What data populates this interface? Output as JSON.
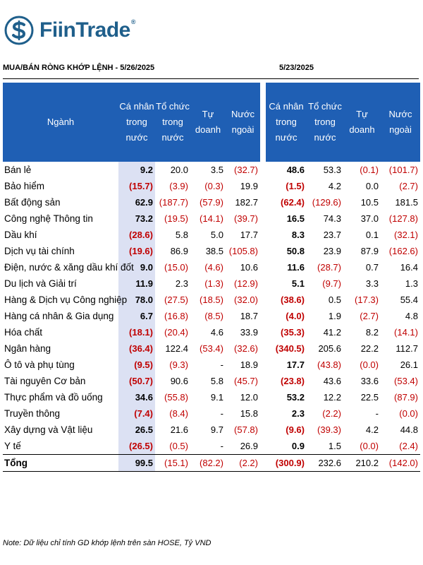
{
  "brand": {
    "name": "FiinTrade",
    "reg": "®",
    "color": "#1f5f8b"
  },
  "header": {
    "left": "MUA/BÁN RÒNG KHỚP LỆNH - 5/26/2025",
    "right": "5/23/2025"
  },
  "columns": {
    "sector": "Ngành",
    "a": [
      "Cá nhân",
      "trong",
      "nước"
    ],
    "b": [
      "Tổ chức",
      "trong",
      "nước"
    ],
    "c": [
      "Tự doanh"
    ],
    "d": [
      "Nước",
      "ngoài"
    ],
    "e": [
      "Cá nhân",
      "trong nước"
    ],
    "f": [
      "Tổ chức",
      "trong",
      "nước"
    ],
    "g": [
      "Tự doanh"
    ],
    "h": [
      "Nước",
      "ngoài"
    ]
  },
  "colors": {
    "header_bg": "#1f5fb4",
    "highlight_bg": "#dce1f3",
    "negative": "#c00000"
  },
  "rows": [
    {
      "name": "Bán lẻ",
      "v": [
        "9.2",
        "20.0",
        "3.5",
        "(32.7)",
        "48.6",
        "53.3",
        "(0.1)",
        "(101.7)"
      ]
    },
    {
      "name": "Bảo hiểm",
      "v": [
        "(15.7)",
        "(3.9)",
        "(0.3)",
        "19.9",
        "(1.5)",
        "4.2",
        "0.0",
        "(2.7)"
      ]
    },
    {
      "name": "Bất động sản",
      "v": [
        "62.9",
        "(187.7)",
        "(57.9)",
        "182.7",
        "(62.4)",
        "(129.6)",
        "10.5",
        "181.5"
      ]
    },
    {
      "name": "Công nghệ Thông tin",
      "v": [
        "73.2",
        "(19.5)",
        "(14.1)",
        "(39.7)",
        "16.5",
        "74.3",
        "37.0",
        "(127.8)"
      ]
    },
    {
      "name": "Dầu khí",
      "v": [
        "(28.6)",
        "5.8",
        "5.0",
        "17.7",
        "8.3",
        "23.7",
        "0.1",
        "(32.1)"
      ]
    },
    {
      "name": "Dịch vụ tài chính",
      "v": [
        "(19.6)",
        "86.9",
        "38.5",
        "(105.8)",
        "50.8",
        "23.9",
        "87.9",
        "(162.6)"
      ]
    },
    {
      "name": "Điện, nước & xăng dầu khí đốt",
      "v": [
        "9.0",
        "(15.0)",
        "(4.6)",
        "10.6",
        "11.6",
        "(28.7)",
        "0.7",
        "16.4"
      ]
    },
    {
      "name": "Du lịch và Giải trí",
      "v": [
        "11.9",
        "2.3",
        "(1.3)",
        "(12.9)",
        "5.1",
        "(9.7)",
        "3.3",
        "1.3"
      ]
    },
    {
      "name": "Hàng & Dịch vụ Công nghiệp",
      "v": [
        "78.0",
        "(27.5)",
        "(18.5)",
        "(32.0)",
        "(38.6)",
        "0.5",
        "(17.3)",
        "55.4"
      ]
    },
    {
      "name": "Hàng cá nhân & Gia dụng",
      "v": [
        "6.7",
        "(16.8)",
        "(8.5)",
        "18.7",
        "(4.0)",
        "1.9",
        "(2.7)",
        "4.8"
      ]
    },
    {
      "name": "Hóa chất",
      "v": [
        "(18.1)",
        "(20.4)",
        "4.6",
        "33.9",
        "(35.3)",
        "41.2",
        "8.2",
        "(14.1)"
      ]
    },
    {
      "name": "Ngân hàng",
      "v": [
        "(36.4)",
        "122.4",
        "(53.4)",
        "(32.6)",
        "(340.5)",
        "205.6",
        "22.2",
        "112.7"
      ]
    },
    {
      "name": "Ô tô và phụ tùng",
      "v": [
        "(9.5)",
        "(9.3)",
        "-",
        "18.9",
        "17.7",
        "(43.8)",
        "(0.0)",
        "26.1"
      ]
    },
    {
      "name": "Tài nguyên Cơ bản",
      "v": [
        "(50.7)",
        "90.6",
        "5.8",
        "(45.7)",
        "(23.8)",
        "43.6",
        "33.6",
        "(53.4)"
      ]
    },
    {
      "name": "Thực phẩm và đồ uống",
      "v": [
        "34.6",
        "(55.8)",
        "9.1",
        "12.0",
        "53.2",
        "12.2",
        "22.5",
        "(87.9)"
      ]
    },
    {
      "name": "Truyền thông",
      "v": [
        "(7.4)",
        "(8.4)",
        "-",
        "15.8",
        "2.3",
        "(2.2)",
        "-",
        "(0.0)"
      ]
    },
    {
      "name": "Xây dựng và Vật liệu",
      "v": [
        "26.5",
        "21.6",
        "9.7",
        "(57.8)",
        "(9.6)",
        "(39.3)",
        "4.2",
        "44.8"
      ]
    },
    {
      "name": "Y tế",
      "v": [
        "(26.5)",
        "(0.5)",
        "-",
        "26.9",
        "0.9",
        "1.5",
        "(0.0)",
        "(2.4)"
      ]
    }
  ],
  "total": {
    "name": "Tổng",
    "v": [
      "99.5",
      "(15.1)",
      "(82.2)",
      "(2.2)",
      "(300.9)",
      "232.6",
      "210.2",
      "(142.0)"
    ]
  },
  "note": "Note: Dữ liệu chỉ tính GD khớp lệnh trên sàn HOSE, Tỷ VND"
}
